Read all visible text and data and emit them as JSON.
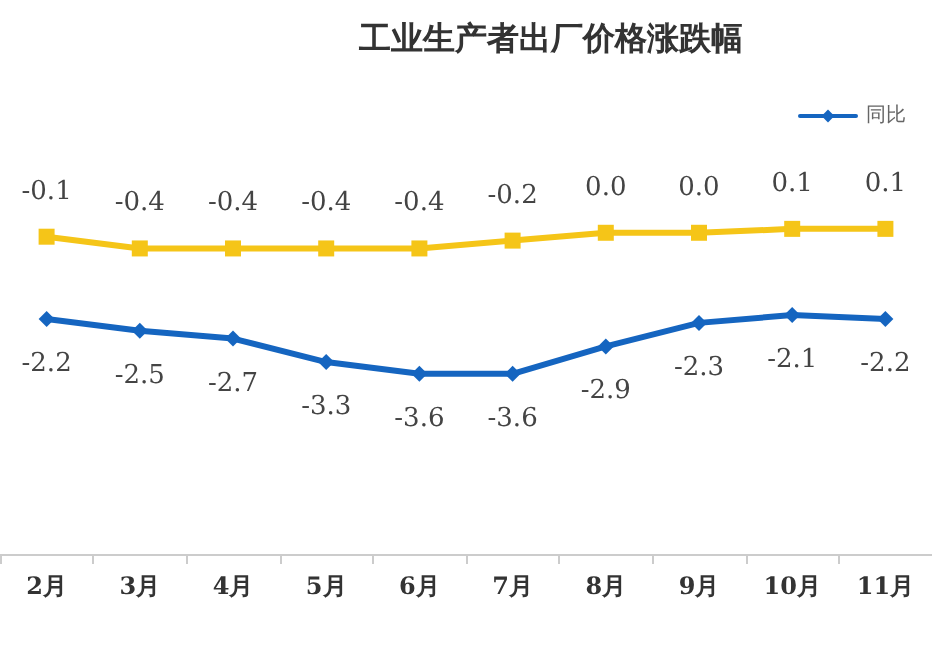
{
  "chart_data": {
    "type": "line",
    "title": "工业生产者出厂价格涨跌幅",
    "categories": [
      "2月",
      "3月",
      "4月",
      "5月",
      "6月",
      "7月",
      "8月",
      "9月",
      "10月",
      "11月"
    ],
    "series": [
      {
        "name": "同比",
        "color": "#1565c0",
        "marker": "diamond",
        "values": [
          -2.2,
          -2.5,
          -2.7,
          -3.3,
          -3.6,
          -3.6,
          -2.9,
          -2.3,
          -2.1,
          -2.2
        ]
      },
      {
        "color": "#f5c518",
        "marker": "square",
        "values": [
          -0.1,
          -0.4,
          -0.4,
          -0.4,
          -0.4,
          -0.2,
          0.0,
          0.0,
          0.1,
          0.1
        ],
        "value_labels": [
          "-0.1",
          "-0.4",
          "-0.4",
          "-0.4",
          "-0.4",
          "-0.2",
          "0.0",
          "0.0",
          "0.1",
          "0.1"
        ]
      }
    ],
    "data_labels": true,
    "legend": "top right",
    "grid": false
  }
}
